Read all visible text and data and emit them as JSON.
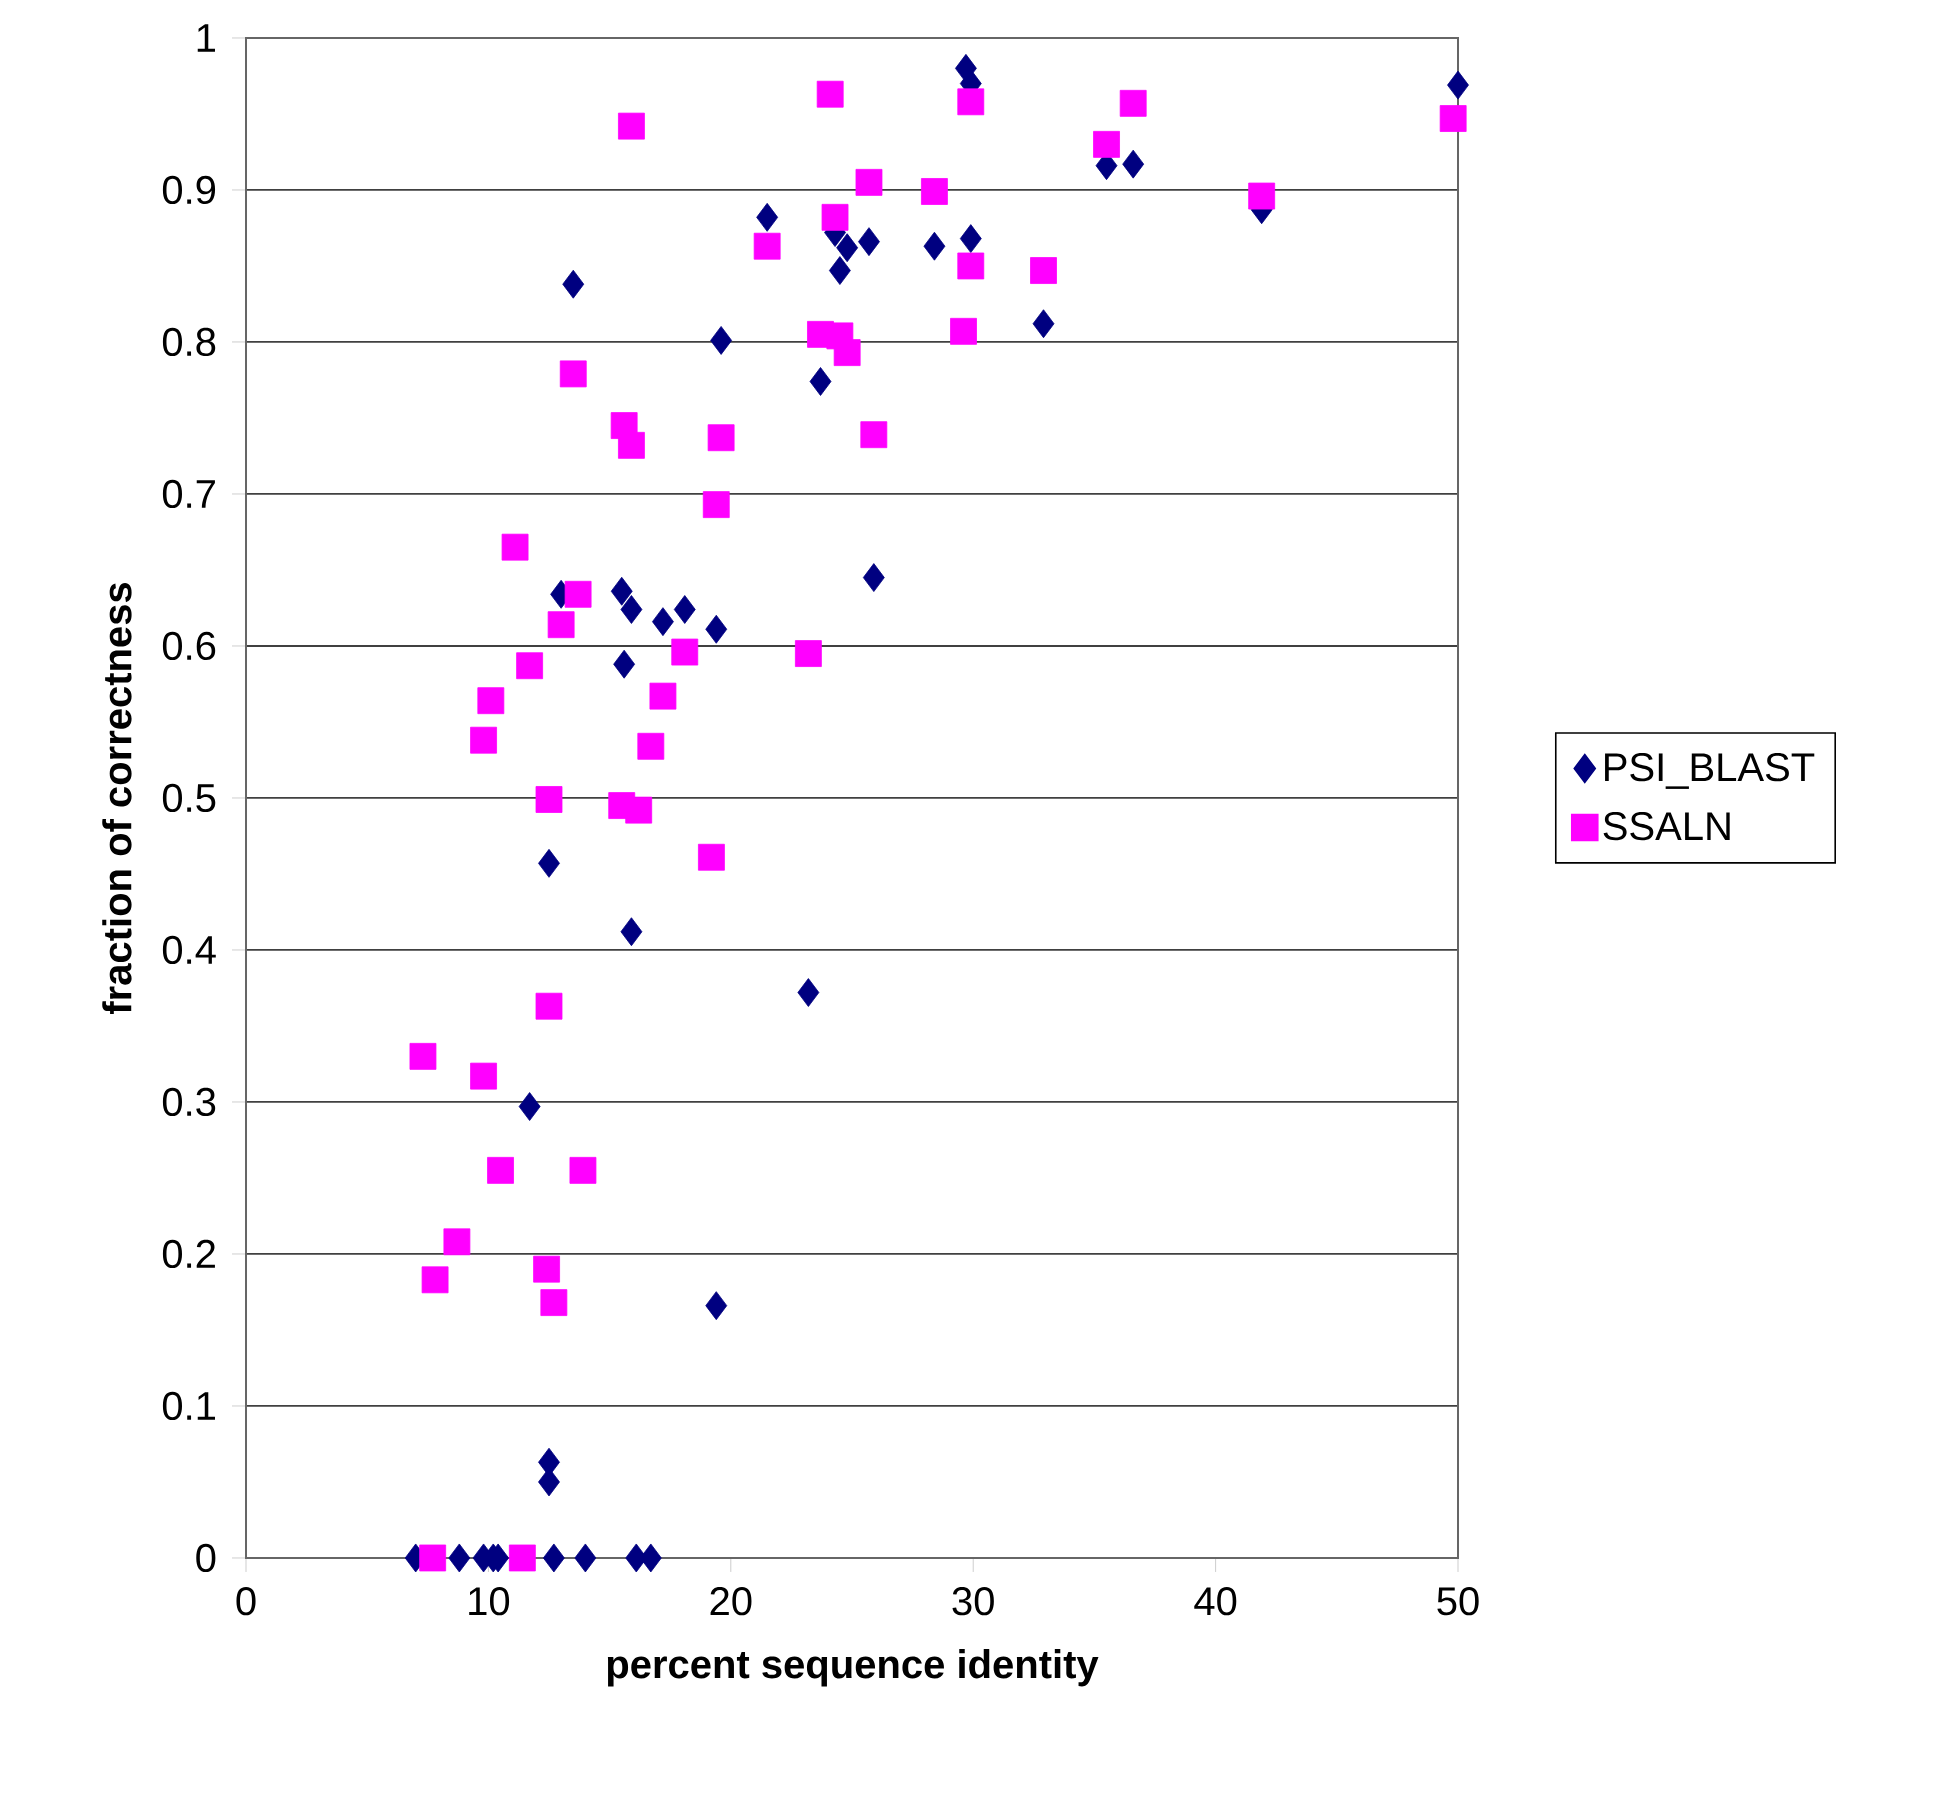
{
  "chart_data": {
    "type": "scatter",
    "xlabel": "percent sequence identity",
    "ylabel": "fraction of correctness",
    "xlim": [
      0,
      50
    ],
    "ylim": [
      0,
      1
    ],
    "xticks": [
      0,
      10,
      20,
      30,
      40,
      50
    ],
    "yticks": [
      0,
      0.1,
      0.2,
      0.3,
      0.4,
      0.5,
      0.6,
      0.7,
      0.8,
      0.9,
      1
    ],
    "grid": "y",
    "legend": "right",
    "series": [
      {
        "name": "PSI_BLAST",
        "color": "#000080",
        "marker": "diamond",
        "x": [
          29.7,
          29.9,
          50,
          35.5,
          36.6,
          41.9,
          21.5,
          24.3,
          24.8,
          25.7,
          24.5,
          28.4,
          29.9,
          32.9,
          13.5,
          19.6,
          23.7,
          25.9,
          19.2,
          13.0,
          15.5,
          15.9,
          17.2,
          18.1,
          19.4,
          15.6,
          12.5,
          15.9,
          23.2,
          11.7,
          13.7,
          19.4,
          12.5,
          12.5,
          7.0,
          8.8,
          9.8,
          10.2,
          10.4,
          12.7,
          14.0,
          16.1,
          16.7
        ],
        "values": [
          0.98,
          0.97,
          0.969,
          0.916,
          0.917,
          0.887,
          0.882,
          0.872,
          0.862,
          0.866,
          0.847,
          0.863,
          0.868,
          0.812,
          0.838,
          0.801,
          0.774,
          0.645,
          null,
          0.634,
          0.636,
          0.624,
          0.616,
          0.624,
          0.611,
          0.588,
          0.457,
          0.412,
          0.372,
          0.297,
          null,
          0.166,
          0.063,
          0.05,
          0,
          0,
          0,
          0,
          0,
          0,
          0,
          0,
          0
        ]
      },
      {
        "name": "SSALN",
        "color": "#ff00ff",
        "marker": "square",
        "x": [
          24.1,
          29.9,
          15.9,
          36.6,
          35.5,
          49.8,
          41.9,
          25.7,
          28.4,
          24.3,
          21.5,
          29.9,
          32.9,
          23.7,
          24.5,
          24.8,
          29.6,
          13.5,
          15.6,
          15.9,
          19.6,
          25.9,
          19.4,
          11.1,
          13.7,
          13.0,
          11.7,
          18.1,
          23.2,
          10.1,
          9.8,
          17.2,
          16.7,
          12.5,
          15.5,
          16.2,
          19.2,
          12.5,
          7.3,
          9.8,
          10.5,
          13.9,
          8.7,
          7.8,
          12.4,
          12.7,
          7.7,
          11.4
        ],
        "values": [
          0.963,
          0.958,
          0.942,
          0.957,
          0.93,
          0.947,
          0.896,
          0.905,
          0.899,
          0.882,
          0.863,
          0.85,
          0.847,
          0.805,
          0.804,
          0.793,
          0.807,
          0.779,
          0.745,
          0.732,
          0.737,
          0.739,
          0.693,
          0.665,
          0.634,
          0.614,
          0.587,
          0.596,
          0.595,
          0.564,
          0.538,
          0.567,
          0.534,
          0.499,
          0.495,
          0.492,
          0.461,
          0.363,
          0.33,
          0.317,
          0.255,
          0.255,
          0.208,
          0.183,
          0.19,
          0.168,
          0,
          0
        ]
      }
    ]
  }
}
